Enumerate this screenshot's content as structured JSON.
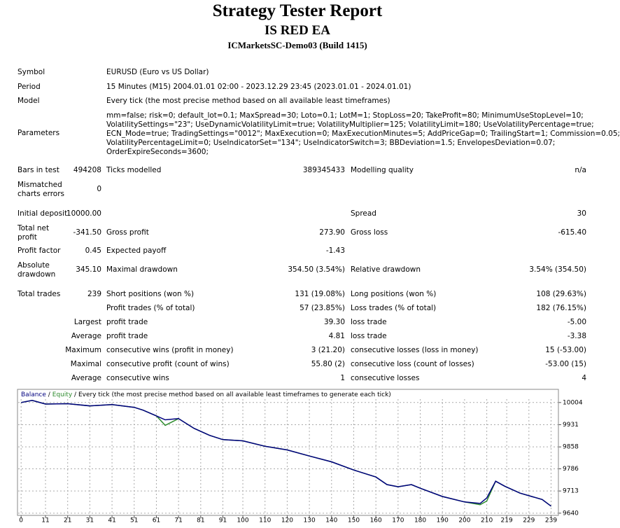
{
  "header": {
    "title": "Strategy Tester Report",
    "subtitle": "IS RED EA",
    "build": "ICMarketsSC-Demo03 (Build 1415)"
  },
  "info": [
    {
      "label": "Symbol",
      "lines": [
        "EURUSD (Euro vs US Dollar)"
      ]
    },
    {
      "label": "Period",
      "lines": [
        "15 Minutes (M15) 2004.01.01 02:00 - 2023.12.29 23:45 (2023.01.01 - 2024.01.01)"
      ]
    },
    {
      "label": "Model",
      "lines": [
        "Every tick (the most precise method based on all available least timeframes)"
      ]
    },
    {
      "label": "Parameters",
      "lines": [
        "mm=false; risk=0; default_lot=0.1; MaxSpread=30; Loto=0.1; LotM=1; StopLoss=20; TakeProfit=80; MinimumUseStopLevel=10;",
        "VolatilitySettings=\"23\"; UseDynamicVolatilityLimit=true; VolatilityMultiplier=125; VolatilityLimit=180; UseVolatilityPercentage=true;",
        "ECN_Mode=true; TradingSettings=\"0012\"; MaxExecution=0; MaxExecutionMinutes=5; AddPriceGap=0; TrailingStart=1; Commission=0.05;",
        "VolatilityPercentageLimit=0; UseIndicatorSet=\"134\"; UseIndicatorSwitch=3; BBDeviation=1.5; EnvelopesDeviation=0.07;",
        "OrderExpireSeconds=3600;"
      ]
    }
  ],
  "stats": [
    {
      "a": "Bars in test",
      "b": "494208",
      "c": "Ticks modelled",
      "d": "389345433",
      "e": "Modelling quality",
      "f": "n/a"
    },
    {
      "a": "Mismatched charts errors",
      "b": "0"
    },
    {
      "a": "Initial deposit",
      "b": "10000.00",
      "e": "Spread",
      "f": "30"
    },
    {
      "a": "Total net profit",
      "b": "-341.50",
      "c": "Gross profit",
      "d": "273.90",
      "e": "Gross loss",
      "f": "-615.40"
    },
    {
      "a": "Profit factor",
      "b": "0.45",
      "c": "Expected payoff",
      "d": "-1.43"
    },
    {
      "a": "Absolute drawdown",
      "b": "345.10",
      "c": "Maximal drawdown",
      "d": "354.50 (3.54%)",
      "e": "Relative drawdown",
      "f": "3.54% (354.50)"
    },
    {
      "a": "Total trades",
      "b": "239",
      "c": "Short positions (won %)",
      "d": "131 (19.08%)",
      "e": "Long positions (won %)",
      "f": "108 (29.63%)"
    },
    {
      "c": "Profit trades (% of total)",
      "d": "57 (23.85%)",
      "e": "Loss trades (% of total)",
      "f": "182 (76.15%)"
    },
    {
      "b": "Largest",
      "c": "profit trade",
      "d": "39.30",
      "e": "loss trade",
      "f": "-5.00"
    },
    {
      "b": "Average",
      "c": "profit trade",
      "d": "4.81",
      "e": "loss trade",
      "f": "-3.38"
    },
    {
      "b": "Maximum",
      "c": "consecutive wins (profit in money)",
      "d": "3 (21.20)",
      "e": "consecutive losses (loss in money)",
      "f": "15 (-53.00)"
    },
    {
      "b": "Maximal",
      "c": "consecutive profit (count of wins)",
      "d": "55.80 (2)",
      "e": "consecutive loss (count of losses)",
      "f": "-53.00 (15)"
    },
    {
      "b": "Average",
      "c": "consecutive wins",
      "d": "1",
      "e": "consecutive losses",
      "f": "4"
    }
  ],
  "chart_data": {
    "type": "line",
    "legend_separator": "/",
    "note": "Every tick (the most precise method based on all available least timeframes to generate each tick)",
    "x": [
      0,
      5,
      11,
      21,
      31,
      41,
      51,
      55,
      61,
      65,
      71,
      78,
      85,
      91,
      100,
      110,
      120,
      130,
      140,
      150,
      160,
      165,
      170,
      176,
      180,
      190,
      200,
      207,
      210,
      214,
      218,
      225,
      235,
      239
    ],
    "series": [
      {
        "name": "Balance",
        "color": "#00007f",
        "values": [
          10004,
          10011,
          9999,
          10000,
          9993,
          9997,
          9988,
          9979,
          9960,
          9947,
          9951,
          9919,
          9896,
          9882,
          9878,
          9860,
          9848,
          9828,
          9809,
          9782,
          9759,
          9734,
          9727,
          9734,
          9722,
          9695,
          9677,
          9672,
          9690,
          9745,
          9729,
          9706,
          9685,
          9663
        ]
      },
      {
        "name": "Equity",
        "color": "#2e8b2e",
        "values": [
          10004,
          10011,
          9999,
          10000,
          9993,
          9997,
          9988,
          9979,
          9960,
          9929,
          9951,
          9919,
          9896,
          9882,
          9878,
          9860,
          9848,
          9828,
          9809,
          9782,
          9759,
          9734,
          9727,
          9734,
          9722,
          9695,
          9677,
          9668,
          9680,
          9745,
          9729,
          9706,
          9685,
          9663
        ]
      }
    ],
    "xlim": [
      -1,
      242
    ],
    "xticks": [
      0,
      11,
      21,
      31,
      41,
      51,
      61,
      71,
      81,
      91,
      100,
      110,
      120,
      130,
      140,
      150,
      160,
      170,
      180,
      190,
      200,
      210,
      219,
      229,
      239
    ],
    "ylim": [
      9635,
      10045
    ],
    "yticks": [
      10004,
      9931,
      9858,
      9786,
      9713,
      9640
    ],
    "grid": true
  }
}
